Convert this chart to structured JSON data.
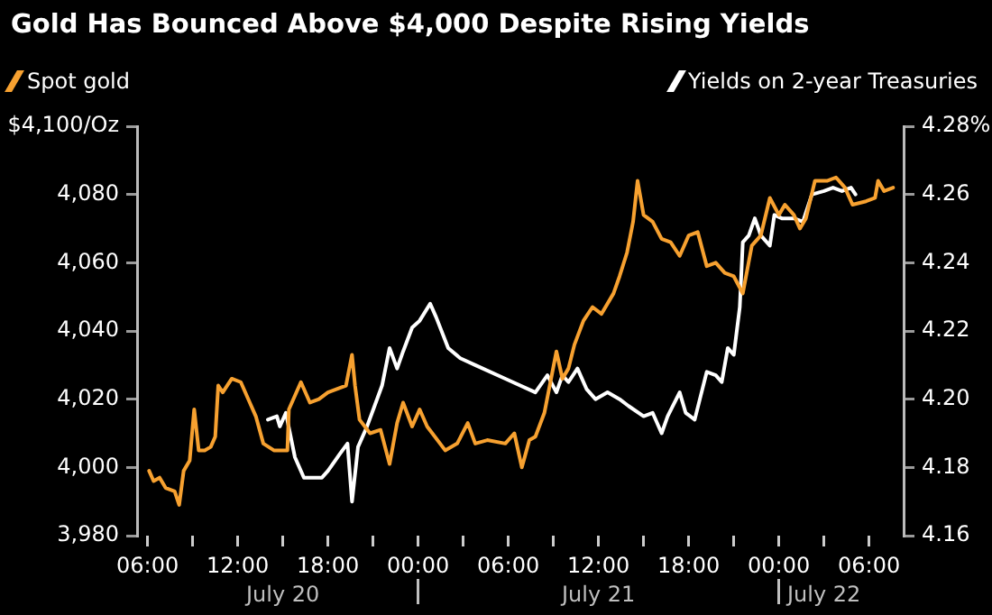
{
  "chart_data": {
    "type": "line",
    "title": "Gold Has Bounced Above $4,000 Despite Rising Yields",
    "legend": "top",
    "grid": false,
    "marker": "none",
    "line_style": "solid",
    "xlim": [
      "--07-20T05:18",
      "--07-22T08:18"
    ],
    "xticks": [
      {
        "value": "--07-20T06:00",
        "label": "06:00"
      },
      {
        "value": "--07-20T09:00",
        "label": null
      },
      {
        "value": "--07-20T12:00",
        "label": "12:00"
      },
      {
        "value": "--07-20T15:00",
        "label": null
      },
      {
        "value": "--07-20T18:00",
        "label": "18:00"
      },
      {
        "value": "--07-20T21:00",
        "label": null
      },
      {
        "value": "--07-21T00:00",
        "label": "00:00"
      },
      {
        "value": "--07-21T03:00",
        "label": null
      },
      {
        "value": "--07-21T06:00",
        "label": "06:00"
      },
      {
        "value": "--07-21T09:00",
        "label": null
      },
      {
        "value": "--07-21T12:00",
        "label": "12:00"
      },
      {
        "value": "--07-21T15:00",
        "label": null
      },
      {
        "value": "--07-21T18:00",
        "label": "18:00"
      },
      {
        "value": "--07-21T21:00",
        "label": null
      },
      {
        "value": "--07-22T00:00",
        "label": "00:00"
      },
      {
        "value": "--07-22T03:00",
        "label": null
      },
      {
        "value": "--07-22T06:00",
        "label": "06:00"
      }
    ],
    "x2lim": [
      "--07-20T05:18",
      "--07-22T08:18"
    ],
    "x2ticks": [
      {
        "value": "--07-20T15:00",
        "label": "July 20"
      },
      {
        "value": "--07-21T00:00",
        "label": null
      },
      {
        "value": "--07-21T12:00",
        "label": "July 21"
      },
      {
        "value": "--07-22T00:00",
        "label": null
      },
      {
        "value": "--07-22T03:00",
        "label": "July 22"
      }
    ],
    "ylim": [
      3980,
      4100
    ],
    "yticks": [
      {
        "value": 3980,
        "label": "3,980"
      },
      {
        "value": 4000,
        "label": "4,000"
      },
      {
        "value": 4020,
        "label": "4,020"
      },
      {
        "value": 4040,
        "label": "4,040"
      },
      {
        "value": 4060,
        "label": "4,060"
      },
      {
        "value": 4080,
        "label": "4,080"
      },
      {
        "value": 4100,
        "label": "$4,100/Oz"
      }
    ],
    "y2lim": [
      4.16,
      4.28
    ],
    "y2ticks": [
      {
        "value": 4.16,
        "label": "4.16"
      },
      {
        "value": 4.18,
        "label": "4.18"
      },
      {
        "value": 4.2,
        "label": "4.20"
      },
      {
        "value": 4.22,
        "label": "4.22"
      },
      {
        "value": 4.24,
        "label": "4.24"
      },
      {
        "value": 4.26,
        "label": "4.26"
      },
      {
        "value": 4.28,
        "label": "4.28%"
      }
    ],
    "series": [
      {
        "name": "Spot gold",
        "color": "#f7a130",
        "axis": "y",
        "x": [
          "--07-20T06:06",
          "--07-20T06:24",
          "--07-20T06:48",
          "--07-20T07:12",
          "--07-20T07:48",
          "--07-20T08:06",
          "--07-20T08:24",
          "--07-20T08:48",
          "--07-20T09:06",
          "--07-20T09:24",
          "--07-20T09:48",
          "--07-20T10:12",
          "--07-20T10:30",
          "--07-20T10:42",
          "--07-20T11:00",
          "--07-20T11:36",
          "--07-20T12:12",
          "--07-20T12:48",
          "--07-20T13:12",
          "--07-20T13:42",
          "--07-20T14:24",
          "--07-20T15:18",
          "--07-20T15:24",
          "--07-20T16:12",
          "--07-20T16:48",
          "--07-20T17:24",
          "--07-20T18:00",
          "--07-20T18:36",
          "--07-20T19:12",
          "--07-20T19:36",
          "--07-20T19:48",
          "--07-20T20:06",
          "--07-20T20:48",
          "--07-20T21:30",
          "--07-20T22:06",
          "--07-20T22:36",
          "--07-20T23:00",
          "--07-20T23:36",
          "--07-21T00:06",
          "--07-21T00:36",
          "--07-21T01:48",
          "--07-21T02:36",
          "--07-21T03:18",
          "--07-21T03:48",
          "--07-21T04:36",
          "--07-21T05:48",
          "--07-21T06:24",
          "--07-21T06:54",
          "--07-21T07:24",
          "--07-21T07:48",
          "--07-21T08:24",
          "--07-21T09:12",
          "--07-21T09:36",
          "--07-21T10:00",
          "--07-21T10:24",
          "--07-21T11:00",
          "--07-21T11:36",
          "--07-21T12:12",
          "--07-21T13:00",
          "--07-21T13:24",
          "--07-21T13:54",
          "--07-21T14:18",
          "--07-21T14:36",
          "--07-21T15:00",
          "--07-21T15:36",
          "--07-21T16:12",
          "--07-21T16:48",
          "--07-21T17:24",
          "--07-21T18:00",
          "--07-21T18:36",
          "--07-21T19:12",
          "--07-21T19:48",
          "--07-21T20:24",
          "--07-21T21:00",
          "--07-21T21:36",
          "--07-21T22:12",
          "--07-21T22:48",
          "--07-21T23:24",
          "--07-22T00:00",
          "--07-22T00:24",
          "--07-22T01:00",
          "--07-22T01:24",
          "--07-22T01:48",
          "--07-22T02:24",
          "--07-22T03:12",
          "--07-22T03:48",
          "--07-22T04:24",
          "--07-22T04:54",
          "--07-22T05:48",
          "--07-22T06:24",
          "--07-22T06:36",
          "--07-22T07:00",
          "--07-22T07:36"
        ],
        "values": [
          3999,
          3996,
          3997,
          3994,
          3993,
          3989,
          3999,
          4002,
          4017,
          4005,
          4005,
          4006,
          4009,
          4024,
          4022,
          4026,
          4025,
          4019,
          4015,
          4007,
          4005,
          4005,
          4017,
          4025,
          4019,
          4020,
          4022,
          4023,
          4024,
          4033,
          4024,
          4014,
          4010,
          4011,
          4001,
          4013,
          4019,
          4012,
          4017,
          4012,
          4005,
          4007,
          4013,
          4007,
          4008,
          4007,
          4010,
          4000,
          4008,
          4009,
          4016,
          4034,
          4026,
          4029,
          4036,
          4043,
          4047,
          4045,
          4051,
          4056,
          4063,
          4072,
          4084,
          4074,
          4072,
          4067,
          4066,
          4062,
          4068,
          4069,
          4059,
          4060,
          4057,
          4056,
          4051,
          4065,
          4068,
          4079,
          4074,
          4077,
          4074,
          4070,
          4073,
          4084,
          4084,
          4085,
          4082,
          4077,
          4078,
          4079,
          4084,
          4081,
          4082
        ]
      },
      {
        "name": "Yields on 2-year Treasuries",
        "color": "#ffffff",
        "axis": "y2",
        "x": [
          "--07-20T14:00",
          "--07-20T14:36",
          "--07-20T14:48",
          "--07-20T15:12",
          "--07-20T15:48",
          "--07-20T16:24",
          "--07-20T17:00",
          "--07-20T17:36",
          "--07-20T18:00",
          "--07-20T18:48",
          "--07-20T19:18",
          "--07-20T19:36",
          "--07-20T20:00",
          "--07-20T20:36",
          "--07-20T21:06",
          "--07-20T21:36",
          "--07-20T22:06",
          "--07-20T22:36",
          "--07-20T23:00",
          "--07-20T23:36",
          "--07-21T00:06",
          "--07-21T00:48",
          "--07-21T01:12",
          "--07-21T02:00",
          "--07-21T02:48",
          "--07-21T03:48",
          "--07-21T05:48",
          "--07-21T07:48",
          "--07-21T08:36",
          "--07-21T09:12",
          "--07-21T09:36",
          "--07-21T10:00",
          "--07-21T10:36",
          "--07-21T11:12",
          "--07-21T11:48",
          "--07-21T12:36",
          "--07-21T13:24",
          "--07-21T14:00",
          "--07-21T15:00",
          "--07-21T15:36",
          "--07-21T16:12",
          "--07-21T16:36",
          "--07-21T17:24",
          "--07-21T17:48",
          "--07-21T18:24",
          "--07-21T18:48",
          "--07-21T19:12",
          "--07-21T19:48",
          "--07-21T20:12",
          "--07-21T20:36",
          "--07-21T21:00",
          "--07-21T21:24",
          "--07-21T21:36",
          "--07-21T22:00",
          "--07-21T22:24",
          "--07-21T22:48",
          "--07-21T23:24",
          "--07-21T23:42",
          "--07-22T00:12",
          "--07-22T01:00",
          "--07-22T01:36",
          "--07-22T02:12",
          "--07-22T03:00",
          "--07-22T03:36",
          "--07-22T04:12",
          "--07-22T04:48",
          "--07-22T05:06"
        ],
        "values": [
          4.194,
          4.195,
          4.192,
          4.196,
          4.183,
          4.177,
          4.177,
          4.177,
          4.179,
          4.184,
          4.187,
          4.17,
          4.186,
          4.192,
          4.198,
          4.204,
          4.215,
          4.209,
          4.214,
          4.221,
          4.223,
          4.228,
          4.224,
          4.215,
          4.212,
          4.21,
          4.206,
          4.202,
          4.207,
          4.202,
          4.207,
          4.205,
          4.209,
          4.203,
          4.2,
          4.202,
          4.2,
          4.198,
          4.195,
          4.196,
          4.19,
          4.195,
          4.202,
          4.196,
          4.194,
          4.201,
          4.208,
          4.207,
          4.205,
          4.215,
          4.213,
          4.227,
          4.246,
          4.248,
          4.253,
          4.248,
          4.245,
          4.254,
          4.253,
          4.253,
          4.252,
          4.26,
          4.261,
          4.262,
          4.261,
          4.262,
          4.26
        ]
      }
    ]
  }
}
